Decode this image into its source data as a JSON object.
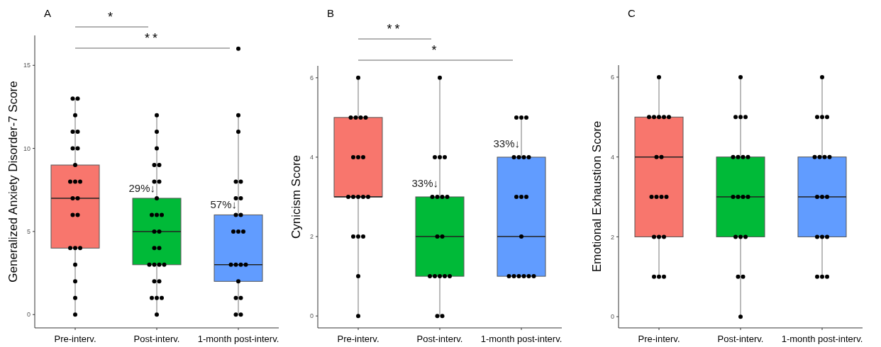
{
  "chart_data": [
    {
      "type": "box",
      "title": "A",
      "ylabel": "Generalized Anxiety Disorder-7 Score",
      "categories": [
        "Pre-interv.",
        "Post-interv.",
        "1-month post-interv."
      ],
      "colors": [
        "#f8766d",
        "#00ba38",
        "#619cff"
      ],
      "ylim": [
        -0.8,
        16.8
      ],
      "yticks": [
        0,
        5,
        10,
        15
      ],
      "boxes": [
        {
          "low": 0,
          "q1": 4,
          "median": 7,
          "q3": 9,
          "high": 13
        },
        {
          "low": 0,
          "q1": 3,
          "median": 5,
          "q3": 7,
          "high": 12
        },
        {
          "low": 0,
          "q1": 2,
          "median": 3,
          "q3": 6,
          "high": 12,
          "outliers": [
            16
          ]
        }
      ],
      "series": [
        {
          "type": "scatter",
          "color": "#000000",
          "x": [
            "Pre-interv.",
            "Pre-interv.",
            "Pre-interv.",
            "Pre-interv.",
            "Pre-interv.",
            "Pre-interv.",
            "Pre-interv.",
            "Pre-interv.",
            "Pre-interv.",
            "Pre-interv.",
            "Pre-interv.",
            "Pre-interv.",
            "Pre-interv.",
            "Pre-interv.",
            "Pre-interv.",
            "Pre-interv.",
            "Pre-interv.",
            "Pre-interv.",
            "Pre-interv.",
            "Pre-interv.",
            "Pre-interv.",
            "Pre-interv.",
            "Post-interv.",
            "Post-interv.",
            "Post-interv.",
            "Post-interv.",
            "Post-interv.",
            "Post-interv.",
            "Post-interv.",
            "Post-interv.",
            "Post-interv.",
            "Post-interv.",
            "Post-interv.",
            "Post-interv.",
            "Post-interv.",
            "Post-interv.",
            "Post-interv.",
            "Post-interv.",
            "Post-interv.",
            "Post-interv.",
            "Post-interv.",
            "Post-interv.",
            "Post-interv.",
            "Post-interv.",
            "Post-interv.",
            "Post-interv.",
            "Post-interv.",
            "1-month post-interv.",
            "1-month post-interv.",
            "1-month post-interv.",
            "1-month post-interv.",
            "1-month post-interv.",
            "1-month post-interv.",
            "1-month post-interv.",
            "1-month post-interv.",
            "1-month post-interv.",
            "1-month post-interv.",
            "1-month post-interv.",
            "1-month post-interv.",
            "1-month post-interv.",
            "1-month post-interv.",
            "1-month post-interv.",
            "1-month post-interv.",
            "1-month post-interv.",
            "1-month post-interv.",
            "1-month post-interv.",
            "1-month post-interv."
          ],
          "values": [
            13,
            13,
            12,
            11,
            11,
            10,
            10,
            9,
            8,
            8,
            8,
            7,
            7,
            6,
            6,
            4,
            4,
            4,
            3,
            2,
            1,
            0,
            12,
            11,
            10,
            9,
            9,
            8,
            8,
            7,
            6,
            6,
            6,
            5,
            5,
            4,
            4,
            3,
            3,
            3,
            3,
            2,
            2,
            1,
            1,
            1,
            0,
            12,
            11,
            8,
            8,
            7,
            7,
            6,
            6,
            5,
            5,
            5,
            3,
            3,
            3,
            3,
            2,
            1,
            1,
            0,
            0
          ]
        }
      ],
      "annotations": [
        "*",
        "**",
        {
          "text": "29%↓",
          "x": "Post-interv.",
          "y": 7.4
        },
        {
          "text": "57%↓",
          "x": "1-month post-interv.",
          "y": 6.4
        }
      ]
    },
    {
      "type": "box",
      "title": "B",
      "ylabel": "Cynicism Score",
      "categories": [
        "Pre-interv.",
        "Post-interv.",
        "1-month post-interv."
      ],
      "colors": [
        "#f8766d",
        "#00ba38",
        "#619cff"
      ],
      "ylim": [
        -0.3,
        6.3
      ],
      "yticks": [
        0,
        2,
        4,
        6
      ],
      "boxes": [
        {
          "low": 0,
          "q1": 3,
          "median": 3,
          "q3": 5,
          "high": 6
        },
        {
          "low": 0,
          "q1": 1,
          "median": 2,
          "q3": 3,
          "high": 6
        },
        {
          "low": 1,
          "q1": 1,
          "median": 2,
          "q3": 4,
          "high": 5
        }
      ],
      "series": [
        {
          "type": "scatter",
          "color": "#000000",
          "x": [
            "Pre-interv.",
            "Pre-interv.",
            "Pre-interv.",
            "Pre-interv.",
            "Pre-interv.",
            "Pre-interv.",
            "Pre-interv.",
            "Pre-interv.",
            "Pre-interv.",
            "Pre-interv.",
            "Pre-interv.",
            "Pre-interv.",
            "Pre-interv.",
            "Pre-interv.",
            "Pre-interv.",
            "Pre-interv.",
            "Pre-interv.",
            "Pre-interv.",
            "Post-interv.",
            "Post-interv.",
            "Post-interv.",
            "Post-interv.",
            "Post-interv.",
            "Post-interv.",
            "Post-interv.",
            "Post-interv.",
            "Post-interv.",
            "Post-interv.",
            "Post-interv.",
            "Post-interv.",
            "Post-interv.",
            "Post-interv.",
            "Post-interv.",
            "Post-interv.",
            "Post-interv.",
            "1-month post-interv.",
            "1-month post-interv.",
            "1-month post-interv.",
            "1-month post-interv.",
            "1-month post-interv.",
            "1-month post-interv.",
            "1-month post-interv.",
            "1-month post-interv.",
            "1-month post-interv.",
            "1-month post-interv.",
            "1-month post-interv.",
            "1-month post-interv.",
            "1-month post-interv.",
            "1-month post-interv.",
            "1-month post-interv.",
            "1-month post-interv.",
            "1-month post-interv."
          ],
          "values": [
            6,
            5,
            5,
            5,
            5,
            4,
            4,
            4,
            3,
            3,
            3,
            3,
            3,
            2,
            2,
            2,
            1,
            0,
            6,
            4,
            4,
            4,
            3,
            3,
            3,
            3,
            2,
            2,
            1,
            1,
            1,
            1,
            1,
            0,
            0,
            5,
            5,
            5,
            4,
            4,
            4,
            4,
            3,
            3,
            3,
            2,
            1,
            1,
            1,
            1,
            1,
            1
          ]
        }
      ],
      "annotations": [
        "**",
        "*",
        {
          "text": "33%↓",
          "x": "Post-interv.",
          "y": 3.25
        },
        {
          "text": "33%↓",
          "x": "1-month post-interv.",
          "y": 4.25
        }
      ]
    },
    {
      "type": "box",
      "title": "C",
      "ylabel": "Emotional Exhaustion Score",
      "categories": [
        "Pre-interv.",
        "Post-interv.",
        "1-month post-interv."
      ],
      "colors": [
        "#f8766d",
        "#00ba38",
        "#619cff"
      ],
      "ylim": [
        -0.28,
        6.3
      ],
      "yticks": [
        0,
        2,
        4,
        6
      ],
      "boxes": [
        {
          "low": 1,
          "q1": 2,
          "median": 4,
          "q3": 5,
          "high": 6
        },
        {
          "low": 0,
          "q1": 2,
          "median": 3,
          "q3": 4,
          "high": 6
        },
        {
          "low": 1,
          "q1": 2,
          "median": 3,
          "q3": 4,
          "high": 6
        }
      ],
      "series": [
        {
          "type": "scatter",
          "color": "#000000",
          "x": [
            "Pre-interv.",
            "Pre-interv.",
            "Pre-interv.",
            "Pre-interv.",
            "Pre-interv.",
            "Pre-interv.",
            "Pre-interv.",
            "Pre-interv.",
            "Pre-interv.",
            "Pre-interv.",
            "Pre-interv.",
            "Pre-interv.",
            "Pre-interv.",
            "Pre-interv.",
            "Pre-interv.",
            "Pre-interv.",
            "Pre-interv.",
            "Pre-interv.",
            "Post-interv.",
            "Post-interv.",
            "Post-interv.",
            "Post-interv.",
            "Post-interv.",
            "Post-interv.",
            "Post-interv.",
            "Post-interv.",
            "Post-interv.",
            "Post-interv.",
            "Post-interv.",
            "Post-interv.",
            "Post-interv.",
            "Post-interv.",
            "Post-interv.",
            "Post-interv.",
            "Post-interv.",
            "Post-interv.",
            "1-month post-interv.",
            "1-month post-interv.",
            "1-month post-interv.",
            "1-month post-interv.",
            "1-month post-interv.",
            "1-month post-interv.",
            "1-month post-interv.",
            "1-month post-interv.",
            "1-month post-interv.",
            "1-month post-interv.",
            "1-month post-interv.",
            "1-month post-interv.",
            "1-month post-interv.",
            "1-month post-interv.",
            "1-month post-interv.",
            "1-month post-interv.",
            "1-month post-interv."
          ],
          "values": [
            6,
            5,
            5,
            5,
            5,
            5,
            4,
            4,
            3,
            3,
            3,
            3,
            2,
            2,
            2,
            1,
            1,
            1,
            6,
            5,
            5,
            5,
            4,
            4,
            4,
            4,
            3,
            3,
            3,
            3,
            2,
            2,
            2,
            1,
            1,
            0,
            6,
            5,
            5,
            5,
            4,
            4,
            4,
            4,
            3,
            3,
            3,
            2,
            2,
            2,
            1,
            1,
            1
          ]
        }
      ]
    }
  ]
}
